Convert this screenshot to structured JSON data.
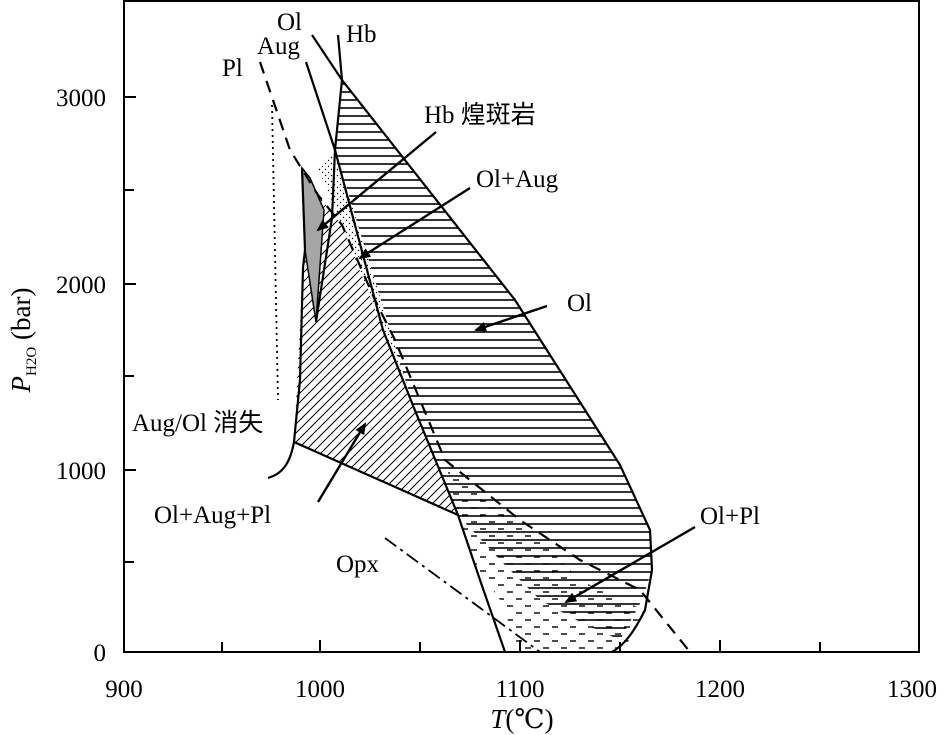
{
  "chart_data": {
    "type": "phase-diagram",
    "x_axis": {
      "label_italic": "T",
      "label_unit": "(℃)",
      "range": [
        900,
        1300
      ],
      "ticks": [
        900,
        1000,
        1100,
        1200,
        1300
      ]
    },
    "y_axis": {
      "label_italic": "P",
      "label_sub": "H2O",
      "label_unit": " (bar)",
      "range": [
        0,
        3400
      ],
      "ticks": [
        0,
        1000,
        2000,
        3000
      ]
    },
    "curve_labels": {
      "ol": "Ol",
      "hb": "Hb",
      "aug": "Aug",
      "pl": "Pl",
      "opx": "Opx"
    },
    "field_labels": {
      "hb_porphyry": "Hb 煌斑岩",
      "ol_aug": "Ol+Aug",
      "ol": "Ol",
      "aug_ol_disappear": "Aug/Ol 消失",
      "ol_aug_pl": "Ol+Aug+Pl",
      "ol_pl": "Ol+Pl"
    }
  }
}
